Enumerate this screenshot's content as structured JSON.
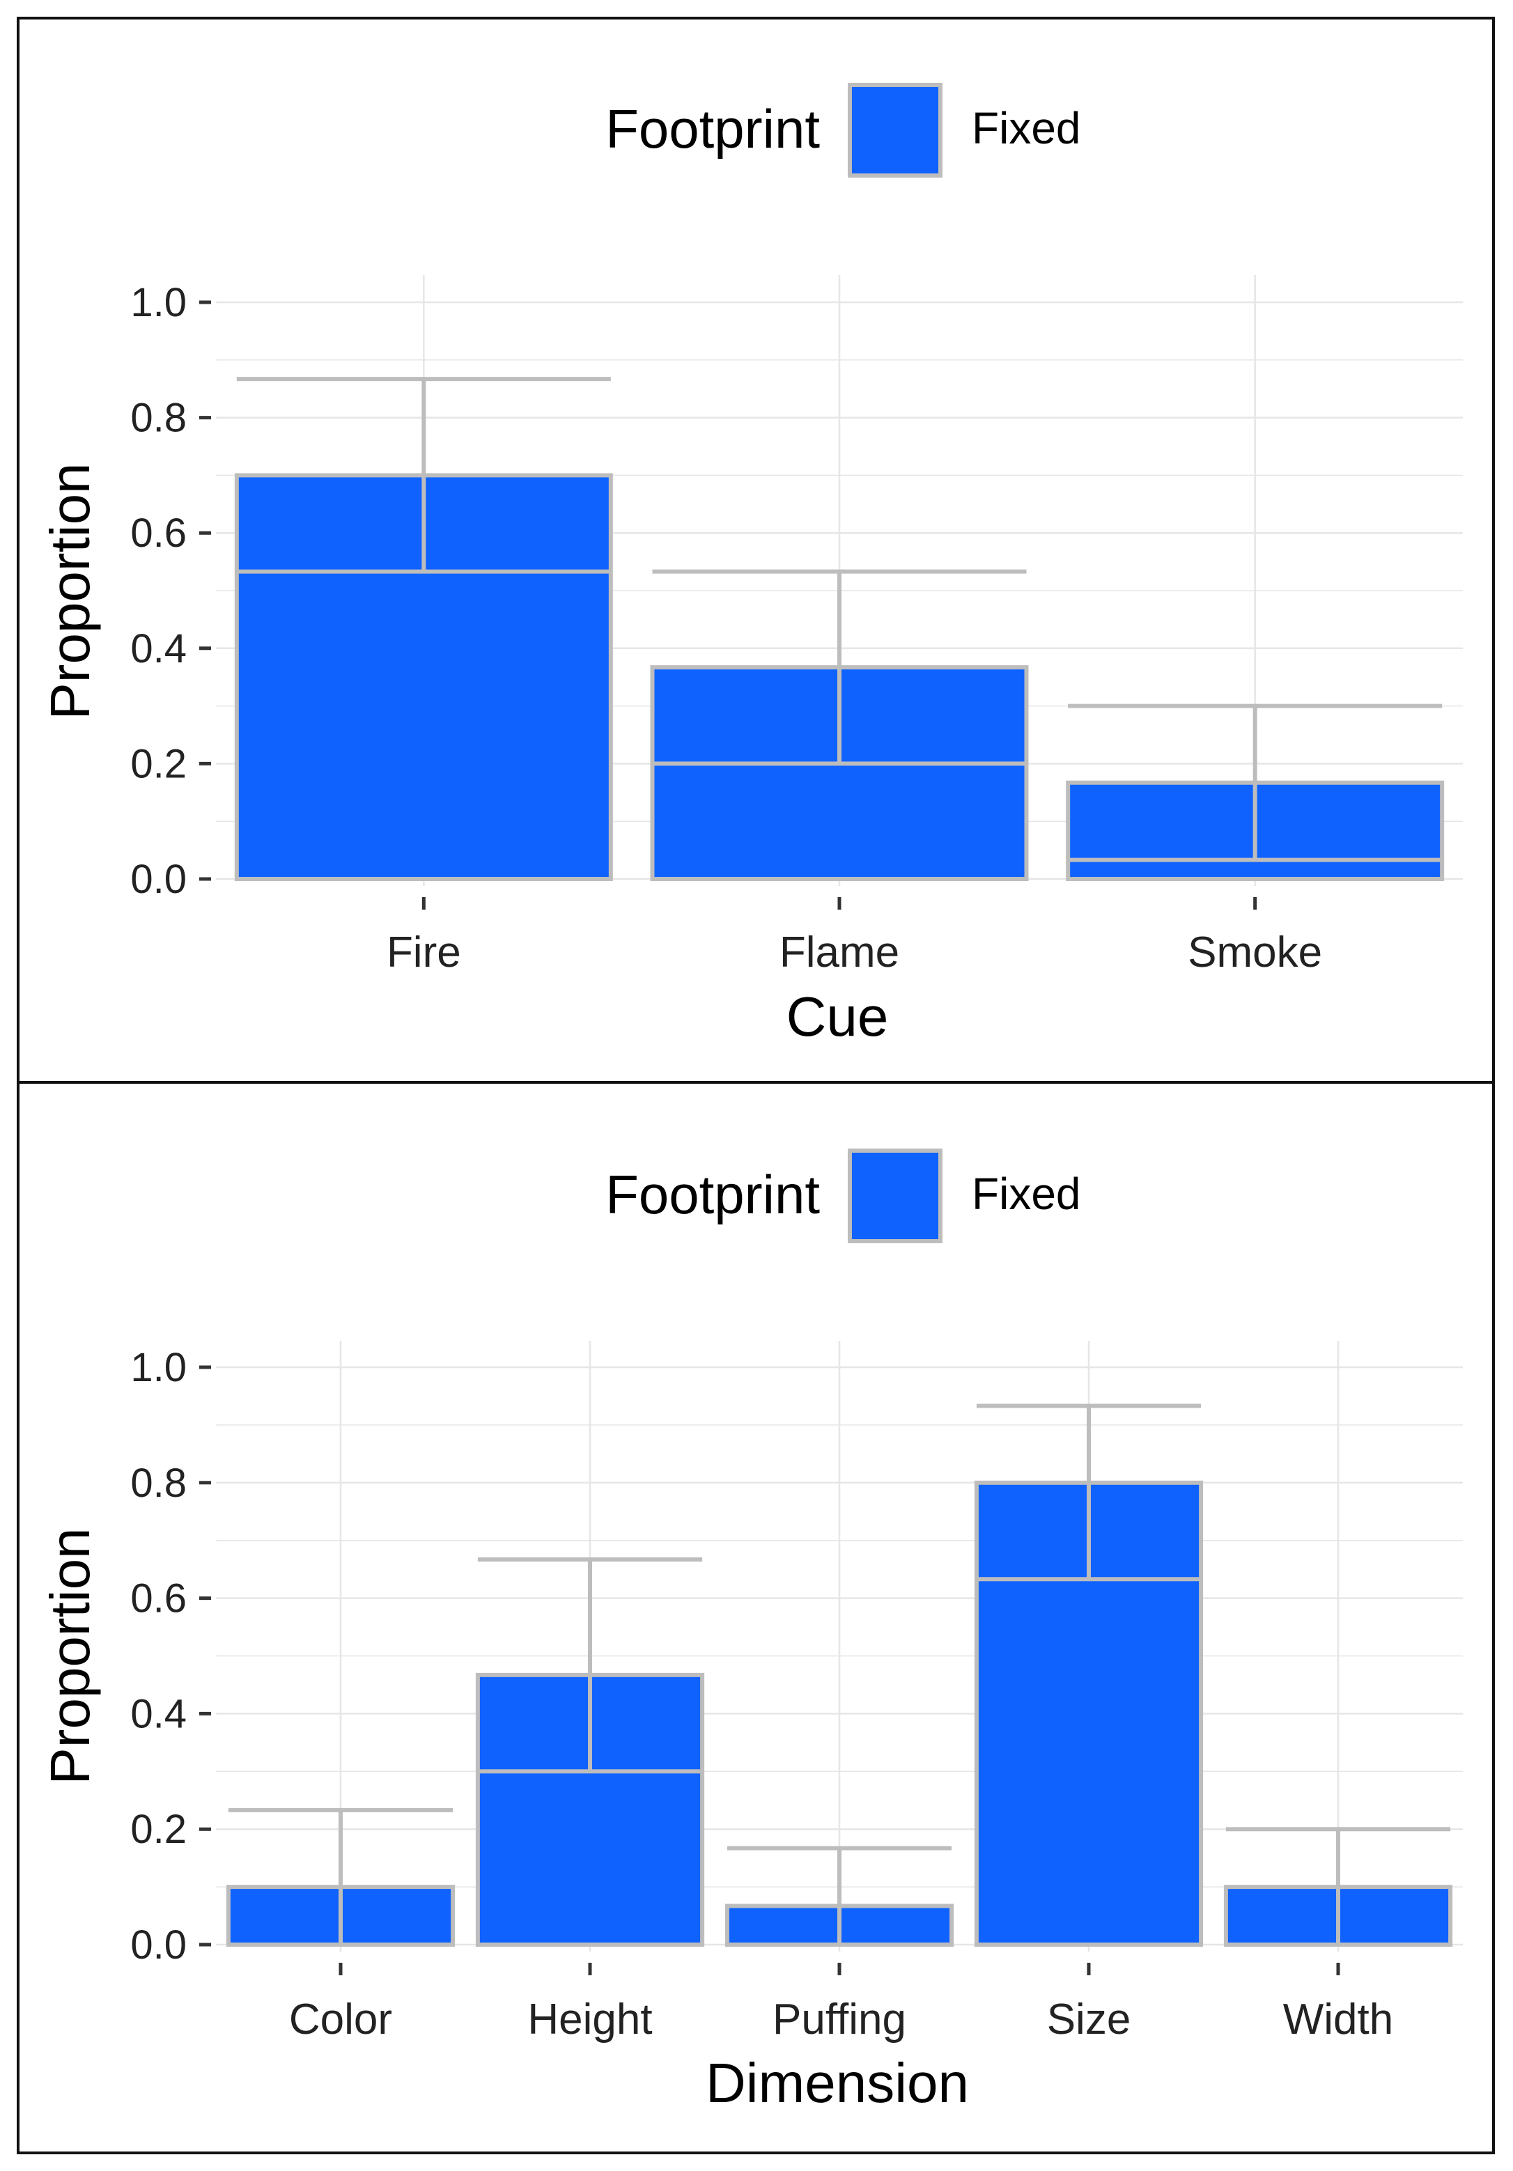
{
  "colors": {
    "bar_fill": "#0f62fe",
    "bar_outline": "#bdbdbd",
    "error_bar": "#bdbdbd",
    "grid": "#e6e6e6",
    "panel_border": "#111111",
    "axis_tick": "#333333",
    "text": "#000000"
  },
  "chart_data": [
    {
      "type": "bar",
      "title": "",
      "xlabel": "Cue",
      "ylabel": "Proportion",
      "legend": {
        "title": "Footprint",
        "entries": [
          "Fixed"
        ],
        "position": "top"
      },
      "categories": [
        "Fire",
        "Flame",
        "Smoke"
      ],
      "series": [
        {
          "name": "Fixed",
          "values": [
            0.7,
            0.367,
            0.167
          ],
          "ci_low": [
            0.533,
            0.2,
            0.033
          ],
          "ci_high": [
            0.867,
            0.533,
            0.3
          ]
        }
      ],
      "ylim": [
        0.0,
        1.0
      ],
      "yticks": [
        0.0,
        0.2,
        0.4,
        0.6,
        0.8,
        1.0
      ],
      "ytick_labels": [
        "0.0",
        "0.2",
        "0.4",
        "0.6",
        "0.8",
        "1.0"
      ],
      "grid": true
    },
    {
      "type": "bar",
      "title": "",
      "xlabel": "Dimension",
      "ylabel": "Proportion",
      "legend": {
        "title": "Footprint",
        "entries": [
          "Fixed"
        ],
        "position": "top"
      },
      "categories": [
        "Color",
        "Height",
        "Puffing",
        "Size",
        "Width"
      ],
      "series": [
        {
          "name": "Fixed",
          "values": [
            0.1,
            0.467,
            0.067,
            0.8,
            0.1
          ],
          "ci_low": [
            0.0,
            0.3,
            0.0,
            0.633,
            0.0
          ],
          "ci_high": [
            0.233,
            0.667,
            0.167,
            0.933,
            0.2
          ]
        }
      ],
      "ylim": [
        0.0,
        1.0
      ],
      "yticks": [
        0.0,
        0.2,
        0.4,
        0.6,
        0.8,
        1.0
      ],
      "ytick_labels": [
        "0.0",
        "0.2",
        "0.4",
        "0.6",
        "0.8",
        "1.0"
      ],
      "grid": true
    }
  ]
}
